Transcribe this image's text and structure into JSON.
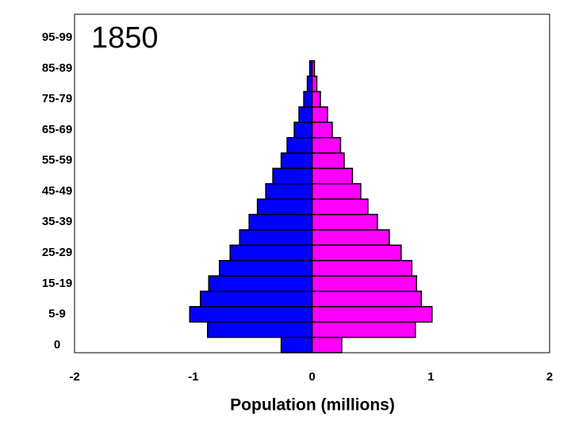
{
  "chart_data": {
    "type": "pyramid",
    "title": "1850",
    "categories": [
      "0",
      null,
      "5-9",
      null,
      "15-19",
      null,
      "25-29",
      null,
      "35-39",
      null,
      "45-49",
      null,
      "55-59",
      null,
      "65-69",
      null,
      "75-79",
      null,
      "85-89",
      null,
      "95-99"
    ],
    "series": [
      {
        "color": "#0000ff",
        "values": [
          -0.26,
          -0.88,
          -1.03,
          -0.94,
          -0.87,
          -0.78,
          -0.69,
          -0.61,
          -0.53,
          -0.46,
          -0.39,
          -0.33,
          -0.26,
          -0.21,
          -0.15,
          -0.11,
          -0.07,
          -0.04,
          -0.02,
          0,
          0
        ]
      },
      {
        "color": "#ff00ff",
        "values": [
          0.25,
          0.87,
          1.01,
          0.92,
          0.88,
          0.84,
          0.75,
          0.65,
          0.55,
          0.47,
          0.41,
          0.34,
          0.27,
          0.24,
          0.17,
          0.13,
          0.07,
          0.04,
          0.02,
          0,
          0
        ]
      }
    ],
    "xlim": [
      -2,
      2
    ],
    "xticks": [
      -2,
      -1,
      0,
      1,
      2
    ],
    "xlabel": "Population (millions)"
  }
}
